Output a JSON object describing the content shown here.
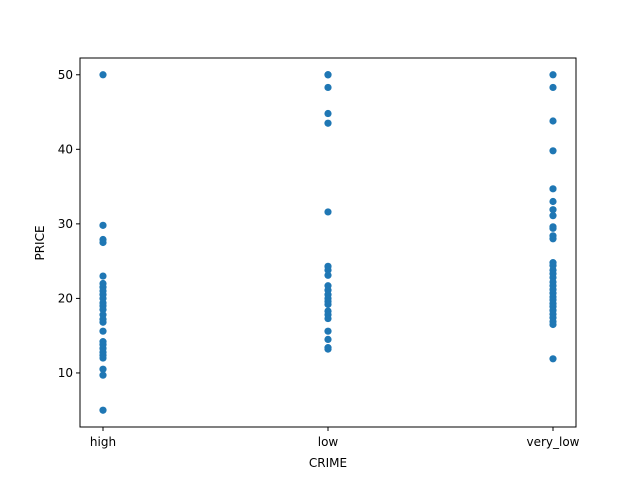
{
  "chart_data": {
    "type": "scatter",
    "xlabel": "CRIME",
    "ylabel": "PRICE",
    "categories": [
      "high",
      "low",
      "very_low"
    ],
    "ylim": [
      2.75,
      52.25
    ],
    "yticks": [
      10,
      20,
      30,
      40,
      50
    ],
    "grid": false,
    "marker_color": "#1f77b4",
    "points": {
      "high": [
        50.0,
        29.8,
        27.9,
        27.5,
        23.0,
        22.0,
        21.5,
        21.0,
        20.5,
        20.0,
        19.4,
        19.0,
        18.5,
        17.8,
        17.2,
        16.8,
        15.6,
        14.2,
        13.8,
        13.3,
        12.8,
        12.4,
        12.0,
        10.5,
        9.7,
        5.0
      ],
      "low": [
        50.0,
        50.0,
        48.3,
        44.8,
        43.5,
        31.6,
        24.3,
        23.8,
        23.1,
        21.7,
        21.1,
        20.5,
        20.0,
        19.6,
        19.2,
        18.3,
        17.8,
        17.3,
        15.6,
        14.5,
        13.4,
        13.2
      ],
      "very_low": [
        50.0,
        48.3,
        43.8,
        39.8,
        34.7,
        33.0,
        31.9,
        31.1,
        29.6,
        29.4,
        28.4,
        28.0,
        24.8,
        24.4,
        23.8,
        23.3,
        22.8,
        22.2,
        21.7,
        21.2,
        20.7,
        20.2,
        19.8,
        19.3,
        18.9,
        18.4,
        17.9,
        17.4,
        16.9,
        16.5,
        11.9
      ]
    }
  }
}
